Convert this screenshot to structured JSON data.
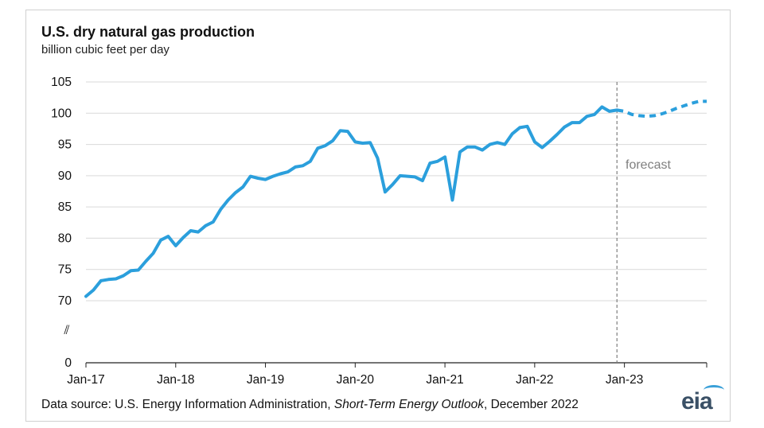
{
  "chart_data": {
    "type": "line",
    "title": "U.S. dry natural gas production",
    "subtitle": "billion cubic feet per day",
    "source_prefix": "Data source: U.S. Energy Information Administration, ",
    "source_italic": "Short-Term Energy Outlook",
    "source_suffix": ", December 2022",
    "logo": "eia",
    "annotation": "forecast",
    "forecast_divider": "Dec-22",
    "axis_break_symbol": "⫽",
    "y_ticks": [
      0,
      70,
      75,
      80,
      85,
      90,
      95,
      100,
      105
    ],
    "x_ticks": [
      "Jan-17",
      "Jan-18",
      "Jan-19",
      "Jan-20",
      "Jan-21",
      "Jan-22",
      "Jan-23"
    ],
    "grid": "horizontal",
    "colors": {
      "series": "#2b9fdc",
      "grid": "#d9d9d9",
      "divider": "#7f7f7f"
    },
    "series": [
      {
        "style": "solid",
        "x": [
          "Jan-17",
          "Feb-17",
          "Mar-17",
          "Apr-17",
          "May-17",
          "Jun-17",
          "Jul-17",
          "Aug-17",
          "Sep-17",
          "Oct-17",
          "Nov-17",
          "Dec-17",
          "Jan-18",
          "Feb-18",
          "Mar-18",
          "Apr-18",
          "May-18",
          "Jun-18",
          "Jul-18",
          "Aug-18",
          "Sep-18",
          "Oct-18",
          "Nov-18",
          "Dec-18",
          "Jan-19",
          "Feb-19",
          "Mar-19",
          "Apr-19",
          "May-19",
          "Jun-19",
          "Jul-19",
          "Aug-19",
          "Sep-19",
          "Oct-19",
          "Nov-19",
          "Dec-19",
          "Jan-20",
          "Feb-20",
          "Mar-20",
          "Apr-20",
          "May-20",
          "Jun-20",
          "Jul-20",
          "Aug-20",
          "Sep-20",
          "Oct-20",
          "Nov-20",
          "Dec-20",
          "Jan-21",
          "Feb-21",
          "Mar-21",
          "Apr-21",
          "May-21",
          "Jun-21",
          "Jul-21",
          "Aug-21",
          "Sep-21",
          "Oct-21",
          "Nov-21",
          "Dec-21",
          "Jan-22",
          "Feb-22",
          "Mar-22",
          "Apr-22",
          "May-22",
          "Jun-22",
          "Jul-22",
          "Aug-22",
          "Sep-22",
          "Oct-22",
          "Nov-22",
          "Dec-22"
        ],
        "y": [
          70.7,
          71.7,
          73.2,
          73.4,
          73.5,
          74.0,
          74.8,
          74.9,
          76.3,
          77.6,
          79.7,
          80.3,
          78.8,
          80.1,
          81.2,
          81.0,
          82.0,
          82.6,
          84.6,
          86.1,
          87.3,
          88.2,
          89.9,
          89.6,
          89.4,
          89.9,
          90.3,
          90.6,
          91.4,
          91.6,
          92.3,
          94.4,
          94.8,
          95.6,
          97.2,
          97.1,
          95.4,
          95.2,
          95.3,
          92.8,
          87.4,
          88.6,
          90.0,
          89.9,
          89.8,
          89.2,
          92.0,
          92.3,
          93.0,
          86.1,
          93.8,
          94.6,
          94.6,
          94.1,
          95.0,
          95.3,
          95.0,
          96.7,
          97.7,
          97.9,
          95.4,
          94.5,
          95.5,
          96.6,
          97.8,
          98.5,
          98.5,
          99.5,
          99.8,
          101.0,
          100.3,
          100.5
        ]
      },
      {
        "style": "dashed",
        "x": [
          "Dec-22",
          "Jan-23",
          "Feb-23",
          "Mar-23",
          "Apr-23",
          "May-23",
          "Jun-23",
          "Jul-23",
          "Aug-23",
          "Sep-23",
          "Oct-23",
          "Nov-23",
          "Dec-23"
        ],
        "y": [
          100.5,
          100.3,
          99.8,
          99.6,
          99.5,
          99.6,
          99.9,
          100.3,
          100.8,
          101.2,
          101.6,
          101.9,
          101.9
        ]
      }
    ]
  }
}
